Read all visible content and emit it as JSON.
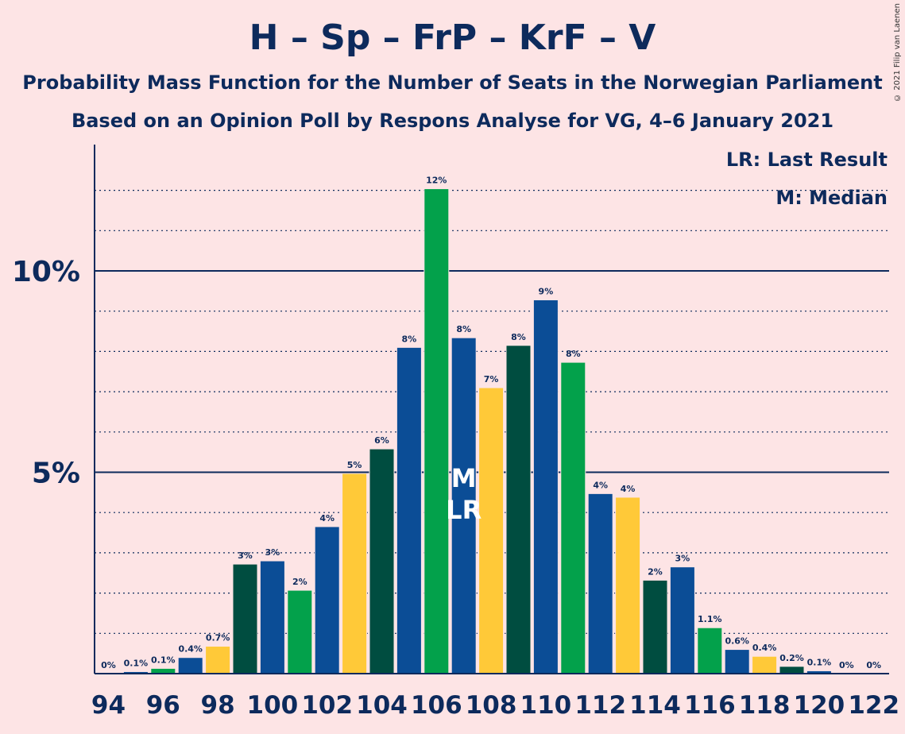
{
  "copyright": "© 2021 Filip van Laenen",
  "colors": {
    "background": "#fde4e5",
    "text": "#0d2a5c",
    "palette": [
      "#03a14b",
      "#0b4d96",
      "#ffc938",
      "#004d40"
    ]
  },
  "chart_data": {
    "type": "bar",
    "title": "H – Sp – FrP – KrF – V",
    "subtitle": "Probability Mass Function for the Number of Seats in the Norwegian Parliament",
    "subtitle2": "Based on an Opinion Poll by Respons Analyse for VG, 4–6 January 2021",
    "xlabel": "",
    "ylabel": "",
    "ylim": [
      0,
      13
    ],
    "y_ticks": [
      {
        "value": 5,
        "label": "5%"
      },
      {
        "value": 10,
        "label": "10%"
      }
    ],
    "x_ticks": [
      "94",
      "96",
      "98",
      "100",
      "102",
      "104",
      "106",
      "108",
      "110",
      "112",
      "114",
      "116",
      "118",
      "120",
      "122"
    ],
    "grid": "dotted every 1%, solid at 5% and 10%",
    "legend": {
      "position": "top-right",
      "entries": [
        "LR: Last Result",
        "M: Median"
      ]
    },
    "last_result": 107,
    "median": 107,
    "markers": {
      "median": "M",
      "last_result": "LR"
    },
    "bars": [
      {
        "seats": 94,
        "value": 0,
        "label": "0%",
        "color": "#004d40"
      },
      {
        "seats": 95,
        "value": 0.05,
        "label": "0.1%",
        "color": "#0b4d96"
      },
      {
        "seats": 96,
        "value": 0.13,
        "label": "0.1%",
        "color": "#03a14b"
      },
      {
        "seats": 97,
        "value": 0.4,
        "label": "0.4%",
        "color": "#0b4d96"
      },
      {
        "seats": 98,
        "value": 0.68,
        "label": "0.7%",
        "color": "#ffc938"
      },
      {
        "seats": 99,
        "value": 2.72,
        "label": "3%",
        "color": "#004d40"
      },
      {
        "seats": 100,
        "value": 2.8,
        "label": "3%",
        "color": "#0b4d96"
      },
      {
        "seats": 101,
        "value": 2.07,
        "label": "2%",
        "color": "#03a14b"
      },
      {
        "seats": 102,
        "value": 3.65,
        "label": "4%",
        "color": "#0b4d96"
      },
      {
        "seats": 103,
        "value": 4.97,
        "label": "5%",
        "color": "#ffc938"
      },
      {
        "seats": 104,
        "value": 5.58,
        "label": "6%",
        "color": "#004d40"
      },
      {
        "seats": 105,
        "value": 8.1,
        "label": "8%",
        "color": "#0b4d96"
      },
      {
        "seats": 106,
        "value": 12.04,
        "label": "12%",
        "color": "#03a14b"
      },
      {
        "seats": 107,
        "value": 8.34,
        "label": "8%",
        "color": "#0b4d96"
      },
      {
        "seats": 108,
        "value": 7.1,
        "label": "7%",
        "color": "#ffc938"
      },
      {
        "seats": 109,
        "value": 8.15,
        "label": "8%",
        "color": "#004d40"
      },
      {
        "seats": 110,
        "value": 9.28,
        "label": "9%",
        "color": "#0b4d96"
      },
      {
        "seats": 111,
        "value": 7.73,
        "label": "8%",
        "color": "#03a14b"
      },
      {
        "seats": 112,
        "value": 4.47,
        "label": "4%",
        "color": "#0b4d96"
      },
      {
        "seats": 113,
        "value": 4.38,
        "label": "4%",
        "color": "#ffc938"
      },
      {
        "seats": 114,
        "value": 2.32,
        "label": "2%",
        "color": "#004d40"
      },
      {
        "seats": 115,
        "value": 2.65,
        "label": "3%",
        "color": "#0b4d96"
      },
      {
        "seats": 116,
        "value": 1.14,
        "label": "1.1%",
        "color": "#03a14b"
      },
      {
        "seats": 117,
        "value": 0.6,
        "label": "0.6%",
        "color": "#0b4d96"
      },
      {
        "seats": 118,
        "value": 0.43,
        "label": "0.4%",
        "color": "#ffc938"
      },
      {
        "seats": 119,
        "value": 0.18,
        "label": "0.2%",
        "color": "#004d40"
      },
      {
        "seats": 120,
        "value": 0.07,
        "label": "0.1%",
        "color": "#0b4d96"
      },
      {
        "seats": 121,
        "value": 0,
        "label": "0%",
        "color": "#03a14b"
      },
      {
        "seats": 122,
        "value": 0,
        "label": "0%",
        "color": "#0b4d96"
      }
    ]
  }
}
